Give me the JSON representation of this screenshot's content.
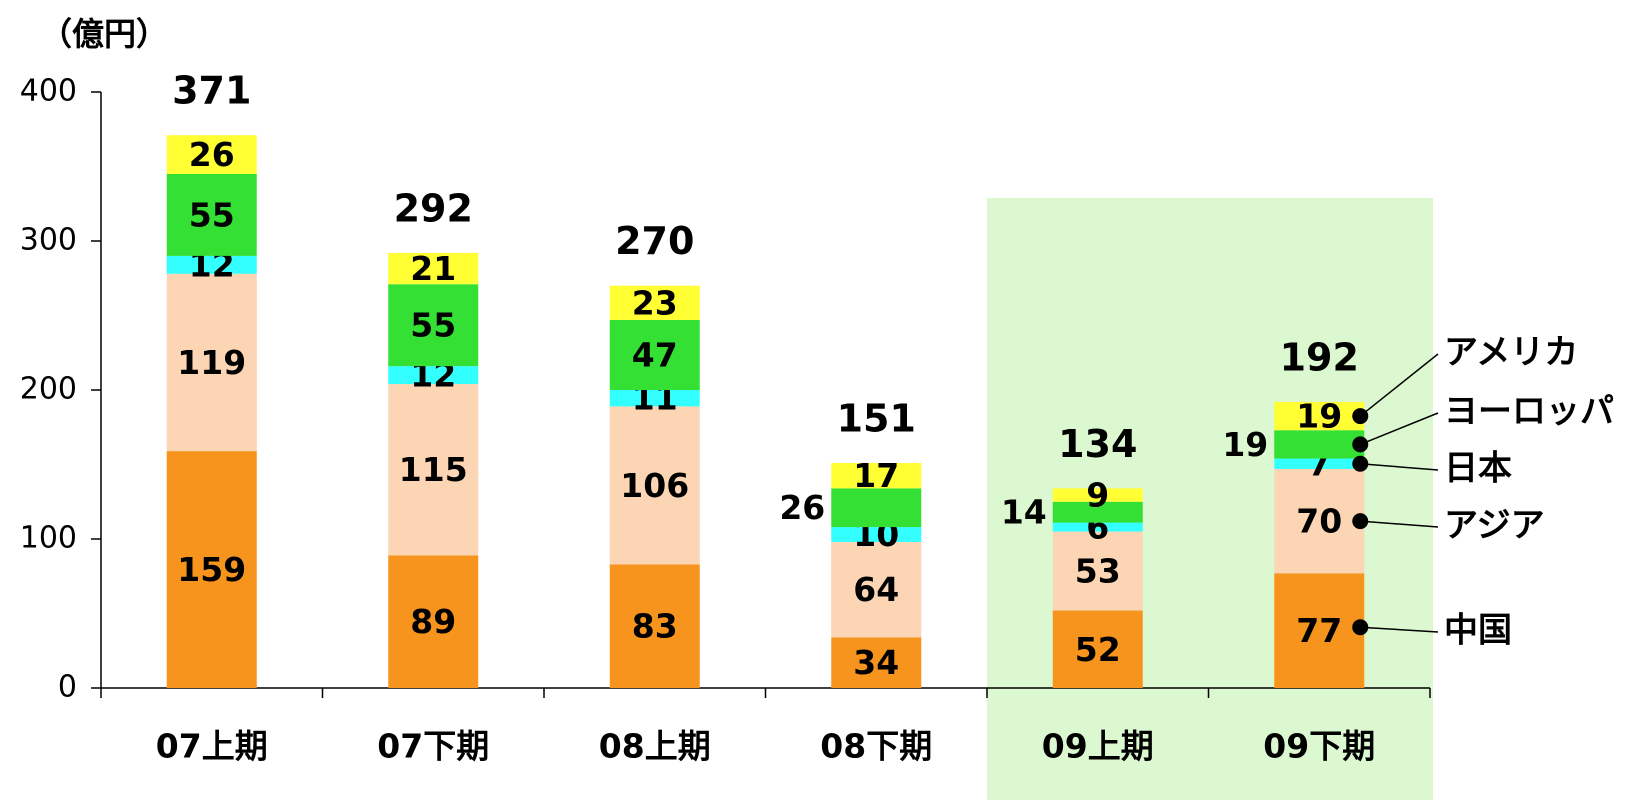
{
  "chart_data": {
    "type": "stacked_bar",
    "unit_label": "（億円）",
    "categories": [
      "07上期",
      "07下期",
      "08上期",
      "08下期",
      "09上期",
      "09下期"
    ],
    "series": [
      {
        "name": "中国",
        "color": "#f7941d",
        "values": [
          159,
          89,
          83,
          34,
          52,
          77
        ]
      },
      {
        "name": "アジア",
        "color": "#fcd5b4",
        "values": [
          119,
          115,
          106,
          64,
          53,
          70
        ]
      },
      {
        "name": "日本",
        "color": "#33ffff",
        "values": [
          12,
          12,
          11,
          10,
          6,
          7
        ]
      },
      {
        "name": "ヨーロッパ",
        "color": "#33e033",
        "values": [
          55,
          55,
          47,
          26,
          14,
          19
        ]
      },
      {
        "name": "アメリカ",
        "color": "#ffff33",
        "values": [
          26,
          21,
          23,
          17,
          9,
          19
        ]
      }
    ],
    "totals": [
      371,
      292,
      270,
      151,
      134,
      192
    ],
    "ylim": [
      0,
      400
    ],
    "yticks": [
      0,
      100,
      200,
      300,
      400
    ],
    "grid": false,
    "legend": "right"
  }
}
